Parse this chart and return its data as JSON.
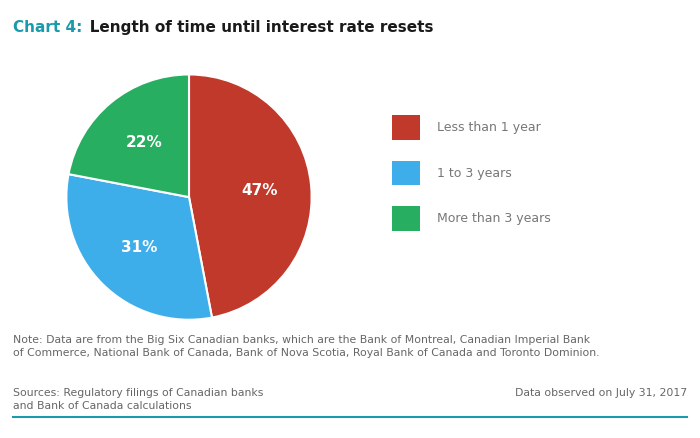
{
  "title_label": "Chart 4:",
  "title_label_color": "#1a9aaa",
  "title_text": "   Length of time until interest rate resets",
  "title_color": "#1a1a1a",
  "slices": [
    47,
    31,
    22
  ],
  "labels": [
    "47%",
    "31%",
    "22%"
  ],
  "colors": [
    "#c0392b",
    "#3daee9",
    "#27ae60"
  ],
  "legend_labels": [
    "Less than 1 year",
    "1 to 3 years",
    "More than 3 years"
  ],
  "note_text": "Note: Data are from the Big Six Canadian banks, which are the Bank of Montreal, Canadian Imperial Bank\nof Commerce, National Bank of Canada, Bank of Nova Scotia, Royal Bank of Canada and Toronto Dominion.",
  "sources_text": "Sources: Regulatory filings of Canadian banks\nand Bank of Canada calculations",
  "date_text": "Data observed on July 31, 2017",
  "separator_color": "#1a9aaa",
  "note_color": "#666666",
  "background_color": "#ffffff",
  "startangle": 90
}
